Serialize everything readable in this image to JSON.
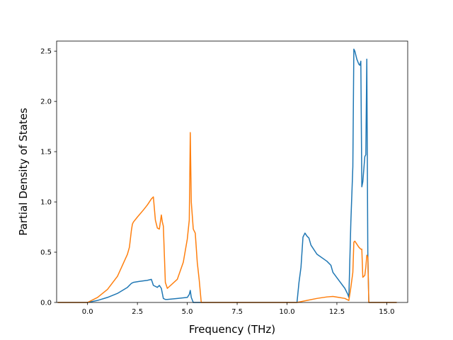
{
  "chart_data": {
    "type": "line",
    "title": "",
    "xlabel": "Frequency (THz)",
    "ylabel": "Partial Density of States",
    "xlim": [
      -1.55,
      16.05
    ],
    "ylim": [
      0.0,
      2.6
    ],
    "xticks": [
      0.0,
      2.5,
      5.0,
      7.5,
      10.0,
      12.5,
      15.0
    ],
    "xtick_labels": [
      "0.0",
      "2.5",
      "5.0",
      "7.5",
      "10.0",
      "12.5",
      "15.0"
    ],
    "yticks": [
      0.0,
      0.5,
      1.0,
      1.5,
      2.0,
      2.5
    ],
    "ytick_labels": [
      "0.0",
      "0.5",
      "1.0",
      "1.5",
      "2.0",
      "2.5"
    ],
    "grid": false,
    "legend": "none",
    "series": [
      {
        "color": "#1f77b4",
        "x": [
          -1.5,
          0.0,
          0.5,
          1.0,
          1.5,
          2.0,
          2.2,
          2.3,
          2.6,
          3.0,
          3.2,
          3.3,
          3.5,
          3.6,
          3.7,
          3.8,
          3.9,
          4.0,
          4.5,
          5.0,
          5.1,
          5.15,
          5.2,
          5.3,
          5.6,
          10.5,
          10.6,
          10.7,
          10.8,
          10.9,
          11.0,
          11.1,
          11.2,
          11.5,
          12.0,
          12.2,
          12.3,
          12.6,
          12.9,
          13.05,
          13.1,
          13.2,
          13.3,
          13.35,
          13.4,
          13.5,
          13.6,
          13.65,
          13.7,
          13.75,
          13.8,
          13.9,
          13.95,
          14.0,
          14.05,
          14.1,
          15.5
        ],
        "y": [
          0.0,
          0.0,
          0.02,
          0.05,
          0.09,
          0.15,
          0.19,
          0.2,
          0.21,
          0.22,
          0.23,
          0.17,
          0.15,
          0.17,
          0.14,
          0.04,
          0.03,
          0.03,
          0.04,
          0.05,
          0.08,
          0.12,
          0.05,
          0.0,
          0.0,
          0.0,
          0.2,
          0.35,
          0.65,
          0.69,
          0.66,
          0.64,
          0.57,
          0.48,
          0.41,
          0.37,
          0.3,
          0.22,
          0.14,
          0.08,
          0.05,
          0.8,
          1.35,
          2.52,
          2.5,
          2.42,
          2.37,
          2.36,
          2.4,
          1.15,
          1.2,
          1.45,
          1.47,
          2.42,
          0.5,
          0.0,
          0.0
        ]
      },
      {
        "color": "#ff7f0e",
        "x": [
          -1.5,
          0.0,
          0.5,
          1.0,
          1.5,
          2.0,
          2.1,
          2.2,
          2.25,
          2.3,
          2.5,
          2.8,
          3.0,
          3.2,
          3.3,
          3.4,
          3.5,
          3.6,
          3.7,
          3.75,
          3.8,
          3.9,
          4.0,
          4.5,
          4.8,
          5.0,
          5.1,
          5.15,
          5.2,
          5.3,
          5.4,
          5.5,
          5.6,
          5.7,
          5.8,
          10.5,
          11.0,
          11.5,
          12.0,
          12.3,
          12.6,
          12.9,
          13.1,
          13.2,
          13.3,
          13.35,
          13.4,
          13.6,
          13.7,
          13.75,
          13.8,
          13.9,
          13.95,
          14.0,
          14.05,
          14.1,
          15.5
        ],
        "y": [
          0.0,
          0.0,
          0.05,
          0.13,
          0.26,
          0.48,
          0.55,
          0.72,
          0.78,
          0.8,
          0.85,
          0.92,
          0.97,
          1.03,
          1.05,
          0.82,
          0.74,
          0.73,
          0.87,
          0.8,
          0.76,
          0.2,
          0.14,
          0.23,
          0.4,
          0.63,
          0.82,
          1.69,
          1.0,
          0.73,
          0.69,
          0.4,
          0.22,
          0.0,
          0.0,
          0.0,
          0.02,
          0.04,
          0.055,
          0.06,
          0.05,
          0.04,
          0.02,
          0.15,
          0.3,
          0.6,
          0.61,
          0.55,
          0.53,
          0.53,
          0.25,
          0.27,
          0.35,
          0.47,
          0.45,
          0.0,
          0.0
        ]
      }
    ]
  }
}
